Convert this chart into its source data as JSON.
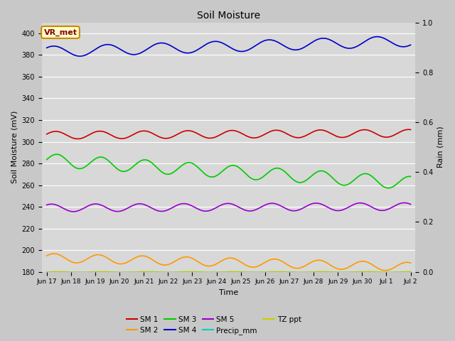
{
  "title": "Soil Moisture",
  "xlabel": "Time",
  "ylabel_left": "Soil Moisture (mV)",
  "ylabel_right": "Rain (mm)",
  "ylim_left": [
    180,
    410
  ],
  "ylim_right": [
    0.0,
    1.0
  ],
  "yticks_left": [
    180,
    200,
    220,
    240,
    260,
    280,
    300,
    320,
    340,
    360,
    380,
    400
  ],
  "yticks_right": [
    0.0,
    0.2,
    0.4,
    0.6,
    0.8,
    1.0
  ],
  "plot_bg_color": "#d8d8d8",
  "fig_bg_color": "#c8c8c8",
  "annotation_text": "VR_met",
  "annotation_bg": "#ffffcc",
  "annotation_border": "#cc8800",
  "annotation_text_color": "#880000",
  "series": {
    "SM 1": {
      "color": "#cc0000",
      "base": 306,
      "amplitude": 3.5,
      "trend": 0.12,
      "freq_per_day": 0.55,
      "phase": 0.3
    },
    "SM 2": {
      "color": "#ff9900",
      "base": 193,
      "amplitude": 4.0,
      "trend": -0.55,
      "freq_per_day": 0.55,
      "phase": 0.5
    },
    "SM 3": {
      "color": "#00cc00",
      "base": 283,
      "amplitude": 6.0,
      "trend": -1.4,
      "freq_per_day": 0.55,
      "phase": 0.1
    },
    "SM 4": {
      "color": "#0000cc",
      "base": 383,
      "amplitude": 5.0,
      "trend": 0.65,
      "freq_per_day": 0.45,
      "phase": 0.8
    },
    "SM 5": {
      "color": "#9900cc",
      "base": 239,
      "amplitude": 3.5,
      "trend": 0.08,
      "freq_per_day": 0.55,
      "phase": 0.9
    },
    "Precip_mm": {
      "color": "#00cccc",
      "base": 0.0,
      "amplitude": 0,
      "trend": 0,
      "freq_per_day": 0,
      "phase": 0
    },
    "TZ ppt": {
      "color": "#cccc00",
      "base": 180,
      "amplitude": 0.3,
      "trend": 0,
      "freq_per_day": 0.55,
      "phase": 0
    }
  },
  "x_start_day": 17,
  "x_end_day": 32,
  "n_points": 1000,
  "xtick_labels": [
    "Jun 17",
    "Jun 18",
    "Jun 19",
    "Jun 20",
    "Jun 21",
    "Jun 22",
    "Jun 23",
    "Jun 24",
    "Jun 25",
    "Jun 26",
    "Jun 27",
    "Jun 28",
    "Jun 29",
    "Jun 30",
    "Jul 1",
    "Jul 2"
  ],
  "xtick_positions": [
    17,
    18,
    19,
    20,
    21,
    22,
    23,
    24,
    25,
    26,
    27,
    28,
    29,
    30,
    31,
    32
  ]
}
